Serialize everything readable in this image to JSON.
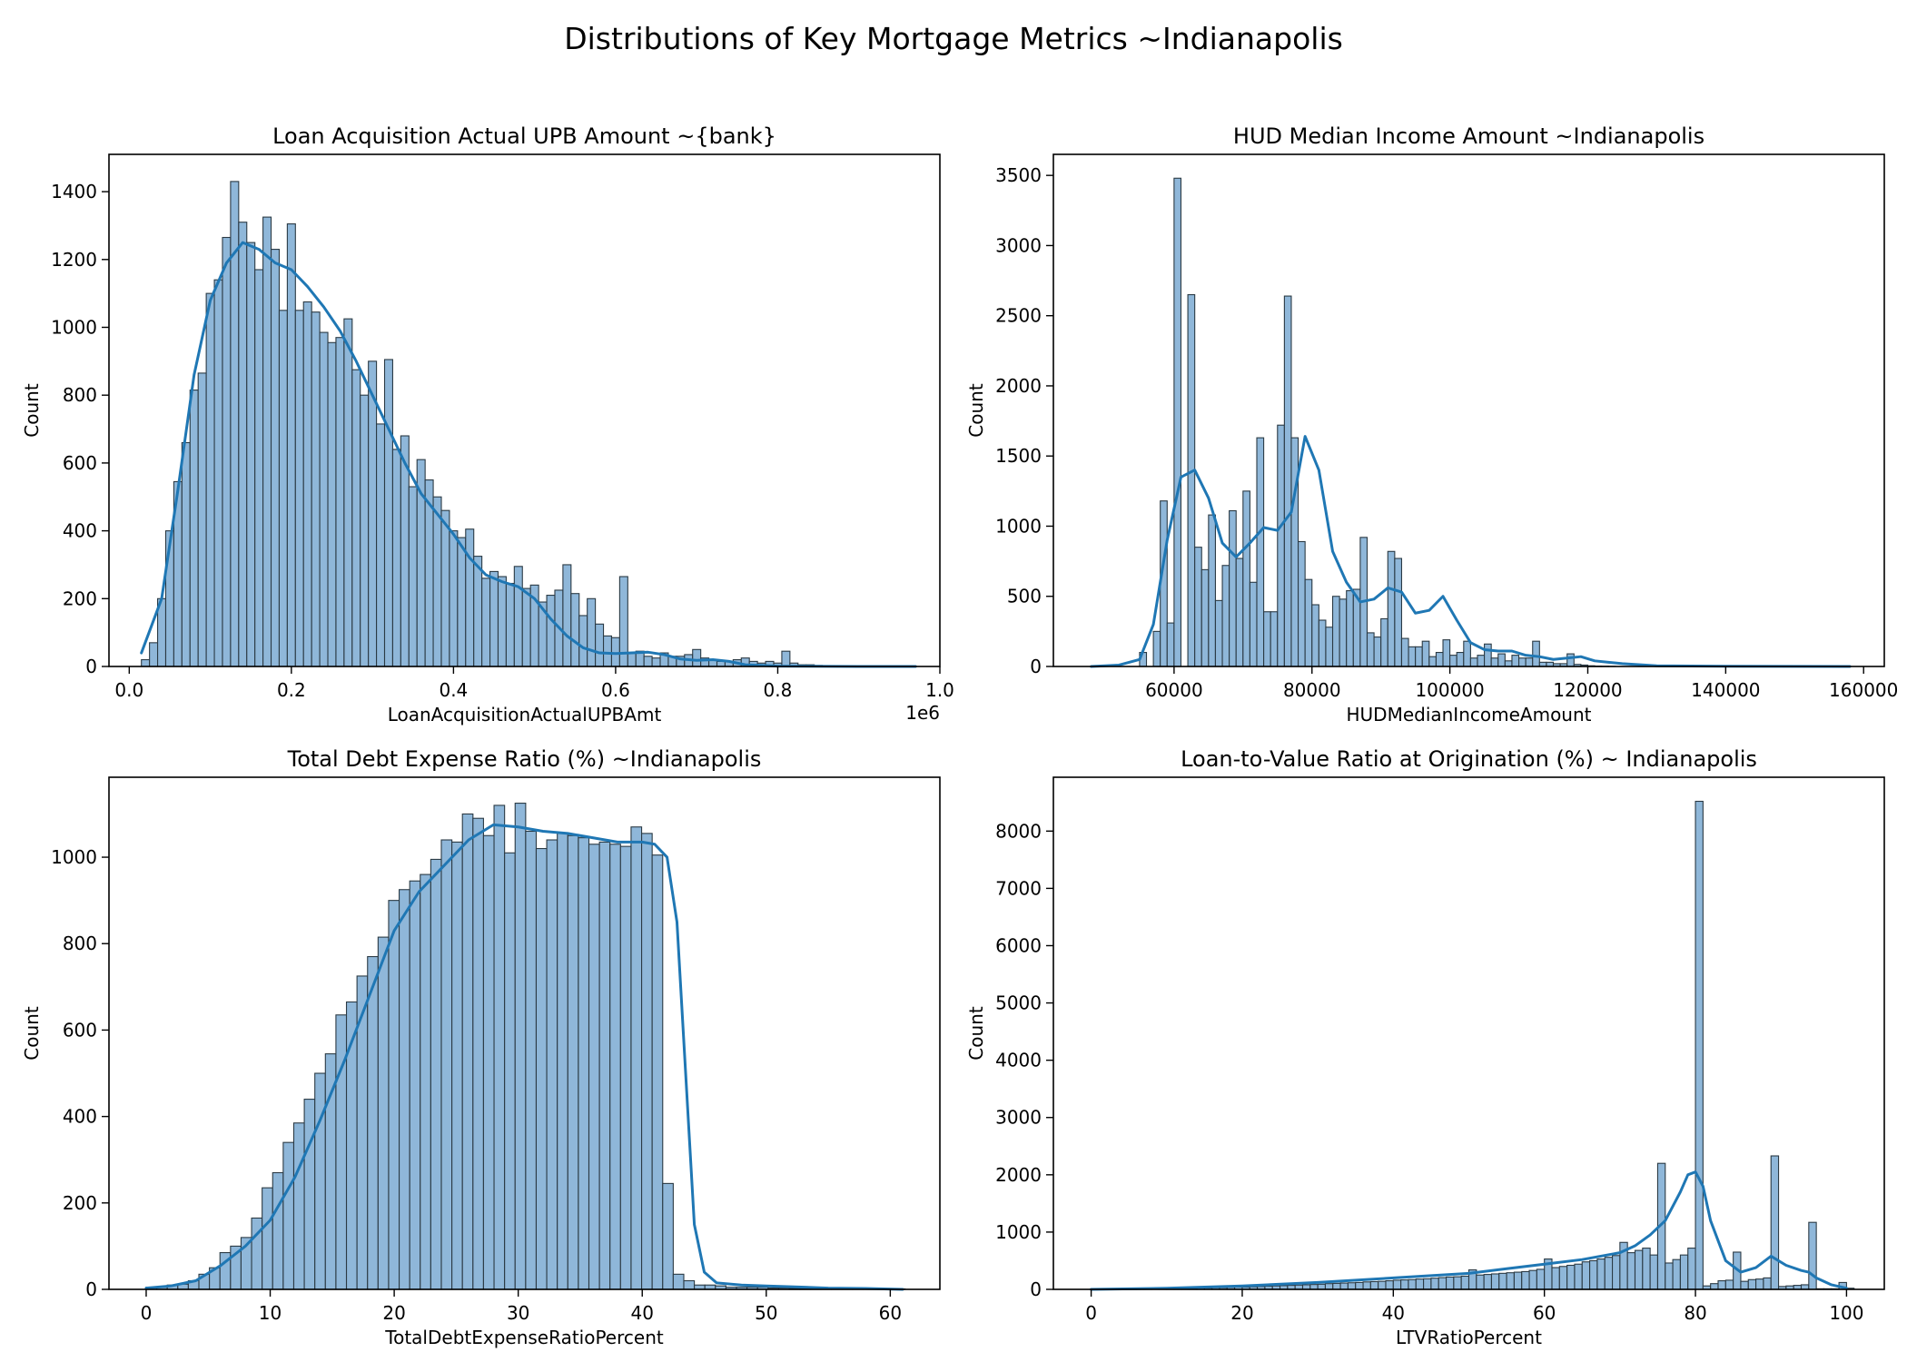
{
  "figure": {
    "title": "Distributions of Key Mortgage Metrics ~Indianapolis"
  },
  "colors": {
    "bar_fill": "#8fb7d9",
    "bar_edge": "#2b3a44",
    "kde_line": "#1f77b4",
    "axes": "#000000"
  },
  "chart_data": [
    {
      "type": "bar",
      "subtype": "histogram_with_kde",
      "title": "Loan Acquisition Actual UPB Amount ~{bank}",
      "xlabel": "LoanAcquisitionActualUPBAmt",
      "ylabel": "Count",
      "x_offset_text": "1e6",
      "xlim": [
        -0.025,
        1.0
      ],
      "ylim": [
        0,
        1510
      ],
      "xticks": [
        0.0,
        0.2,
        0.4,
        0.6,
        0.8,
        1.0
      ],
      "xtick_labels": [
        "0.0",
        "0.2",
        "0.4",
        "0.6",
        "0.8",
        "1.0"
      ],
      "yticks": [
        0,
        200,
        400,
        600,
        800,
        1000,
        1200,
        1400
      ],
      "bin_start": 0.015,
      "bin_width": 0.01,
      "values": [
        20,
        70,
        200,
        400,
        545,
        660,
        815,
        865,
        1100,
        1140,
        1265,
        1430,
        1310,
        1250,
        1170,
        1325,
        1230,
        1050,
        1305,
        1050,
        1075,
        1045,
        985,
        955,
        970,
        1025,
        875,
        800,
        900,
        715,
        905,
        640,
        680,
        530,
        610,
        550,
        500,
        460,
        400,
        380,
        405,
        325,
        260,
        280,
        265,
        245,
        295,
        230,
        240,
        190,
        210,
        225,
        300,
        215,
        150,
        200,
        125,
        90,
        85,
        265,
        40,
        45,
        30,
        25,
        40,
        30,
        30,
        35,
        50,
        25,
        20,
        15,
        15,
        20,
        25,
        15,
        10,
        15,
        10,
        45,
        10,
        5,
        5,
        3,
        2,
        2,
        2,
        1,
        1,
        1,
        1,
        1,
        0,
        0,
        0,
        0,
        0,
        0,
        0,
        0,
        0,
        0,
        0,
        0,
        0,
        0,
        0,
        0,
        0,
        0,
        0,
        0,
        0,
        0,
        0,
        0,
        0,
        0,
        0,
        0
      ],
      "kde": {
        "x": [
          0.015,
          0.04,
          0.06,
          0.08,
          0.1,
          0.12,
          0.14,
          0.16,
          0.18,
          0.2,
          0.22,
          0.24,
          0.26,
          0.28,
          0.3,
          0.32,
          0.34,
          0.36,
          0.38,
          0.4,
          0.42,
          0.44,
          0.46,
          0.48,
          0.5,
          0.52,
          0.54,
          0.56,
          0.58,
          0.6,
          0.62,
          0.64,
          0.66,
          0.68,
          0.7,
          0.72,
          0.74,
          0.76,
          0.8,
          0.9,
          0.97
        ],
        "y": [
          40,
          200,
          520,
          860,
          1080,
          1190,
          1250,
          1230,
          1190,
          1170,
          1120,
          1060,
          990,
          900,
          800,
          700,
          600,
          510,
          450,
          390,
          320,
          270,
          250,
          235,
          200,
          140,
          90,
          55,
          40,
          38,
          40,
          42,
          35,
          22,
          18,
          20,
          15,
          5,
          1,
          0,
          0
        ]
      }
    },
    {
      "type": "bar",
      "subtype": "histogram_with_kde",
      "title": "HUD Median Income Amount ~Indianapolis",
      "xlabel": "HUDMedianIncomeAmount",
      "ylabel": "Count",
      "xlim": [
        42500,
        163000
      ],
      "ylim": [
        0,
        3650
      ],
      "xticks": [
        60000,
        80000,
        100000,
        120000,
        140000,
        160000
      ],
      "xtick_labels": [
        "60000",
        "80000",
        "100000",
        "120000",
        "140000",
        "160000"
      ],
      "yticks": [
        0,
        500,
        1000,
        1500,
        2000,
        2500,
        3000,
        3500
      ],
      "bin_start": 55000,
      "bin_width": 1000,
      "values": [
        100,
        0,
        250,
        1180,
        310,
        3480,
        0,
        2650,
        850,
        690,
        1080,
        470,
        720,
        1110,
        770,
        1250,
        600,
        1630,
        390,
        390,
        1720,
        2640,
        1630,
        890,
        620,
        440,
        330,
        280,
        500,
        480,
        540,
        550,
        920,
        240,
        210,
        340,
        820,
        770,
        200,
        140,
        140,
        180,
        70,
        100,
        190,
        80,
        100,
        180,
        60,
        80,
        160,
        60,
        90,
        40,
        80,
        60,
        60,
        180,
        30,
        30,
        20,
        20,
        90,
        15,
        10,
        5,
        3,
        2,
        1,
        0,
        0,
        0,
        0,
        0,
        0,
        0,
        0,
        0,
        0,
        0,
        0,
        0,
        0,
        0,
        0,
        0,
        0,
        0,
        0,
        0,
        0,
        0,
        0,
        0,
        0,
        0,
        0,
        0,
        0,
        0,
        0,
        0,
        0
      ],
      "kde": {
        "x": [
          48000,
          52000,
          55000,
          57000,
          59000,
          61000,
          63000,
          65000,
          67000,
          69000,
          71000,
          73000,
          75000,
          77000,
          79000,
          81000,
          83000,
          85000,
          87000,
          89000,
          91000,
          93000,
          95000,
          97000,
          99000,
          101000,
          103000,
          105000,
          107000,
          109000,
          111000,
          113000,
          115000,
          117000,
          119000,
          121000,
          123000,
          125000,
          130000,
          140000,
          158000
        ],
        "y": [
          0,
          10,
          50,
          300,
          900,
          1350,
          1400,
          1200,
          880,
          780,
          880,
          990,
          970,
          1100,
          1640,
          1400,
          820,
          600,
          460,
          480,
          560,
          530,
          380,
          400,
          500,
          330,
          170,
          120,
          110,
          110,
          80,
          70,
          50,
          60,
          70,
          40,
          30,
          20,
          5,
          2,
          0
        ]
      }
    },
    {
      "type": "bar",
      "subtype": "histogram_with_kde",
      "title": "Total Debt Expense Ratio (%) ~Indianapolis",
      "xlabel": "TotalDebtExpenseRatioPercent",
      "ylabel": "Count",
      "xlim": [
        -3,
        64
      ],
      "ylim": [
        0,
        1185
      ],
      "xticks": [
        0,
        10,
        20,
        30,
        40,
        50,
        60
      ],
      "xtick_labels": [
        "0",
        "10",
        "20",
        "30",
        "40",
        "50",
        "60"
      ],
      "yticks": [
        0,
        200,
        400,
        600,
        800,
        1000
      ],
      "bin_start": 0,
      "bin_width": 0.85,
      "values": [
        5,
        5,
        10,
        12,
        20,
        35,
        50,
        85,
        100,
        120,
        165,
        235,
        270,
        340,
        385,
        440,
        500,
        545,
        635,
        665,
        725,
        770,
        815,
        900,
        925,
        945,
        960,
        995,
        1040,
        1035,
        1100,
        1090,
        1050,
        1120,
        1010,
        1125,
        1060,
        1020,
        1040,
        1055,
        1050,
        1045,
        1030,
        1035,
        1030,
        1025,
        1070,
        1055,
        1005,
        245,
        35,
        20,
        10,
        10,
        8,
        5,
        5,
        5,
        5,
        3,
        3,
        2,
        2,
        2,
        1,
        1,
        1,
        1,
        1,
        0,
        0,
        1
      ],
      "kde": {
        "x": [
          0,
          2,
          4,
          6,
          8,
          10,
          12,
          14,
          16,
          18,
          20,
          22,
          24,
          26,
          28,
          30,
          32,
          34,
          36,
          38,
          40,
          41,
          42,
          42.8,
          43.5,
          44.2,
          45,
          46,
          48,
          50,
          52,
          55,
          58,
          61
        ],
        "y": [
          3,
          8,
          20,
          55,
          100,
          160,
          260,
          390,
          530,
          680,
          830,
          920,
          980,
          1040,
          1075,
          1070,
          1060,
          1055,
          1045,
          1035,
          1035,
          1030,
          1000,
          850,
          500,
          150,
          40,
          15,
          10,
          8,
          6,
          3,
          2,
          0
        ]
      }
    },
    {
      "type": "bar",
      "subtype": "histogram_with_kde",
      "title": "Loan-to-Value Ratio at Origination (%) ~ Indianapolis",
      "xlabel": "LTVRatioPercent",
      "ylabel": "Count",
      "xlim": [
        -5,
        105
      ],
      "ylim": [
        0,
        8940
      ],
      "xticks": [
        0,
        20,
        40,
        60,
        80,
        100
      ],
      "xtick_labels": [
        "0",
        "20",
        "40",
        "60",
        "80",
        "100"
      ],
      "yticks": [
        0,
        1000,
        2000,
        3000,
        4000,
        5000,
        6000,
        7000,
        8000
      ],
      "bin_start": 1,
      "bin_width": 1,
      "values": [
        5,
        5,
        5,
        5,
        5,
        5,
        10,
        10,
        10,
        15,
        15,
        20,
        20,
        25,
        25,
        30,
        30,
        35,
        40,
        40,
        45,
        50,
        55,
        60,
        65,
        70,
        75,
        80,
        85,
        90,
        100,
        105,
        110,
        115,
        120,
        130,
        135,
        140,
        150,
        160,
        165,
        170,
        180,
        185,
        195,
        205,
        215,
        220,
        230,
        340,
        250,
        260,
        270,
        280,
        290,
        300,
        310,
        330,
        350,
        530,
        380,
        400,
        420,
        440,
        480,
        500,
        530,
        560,
        590,
        820,
        640,
        680,
        720,
        600,
        2200,
        460,
        520,
        600,
        720,
        8520,
        60,
        100,
        150,
        160,
        650,
        140,
        170,
        180,
        200,
        2330,
        50,
        60,
        70,
        80,
        1170,
        10,
        10,
        10,
        120,
        20
      ],
      "kde": {
        "x": [
          0,
          10,
          20,
          30,
          40,
          50,
          55,
          60,
          65,
          70,
          72,
          74,
          76,
          78,
          79,
          80,
          81,
          82,
          84,
          86,
          88,
          90,
          92,
          94,
          95,
          96,
          98,
          100
        ],
        "y": [
          0,
          20,
          60,
          120,
          200,
          280,
          360,
          440,
          520,
          640,
          760,
          950,
          1200,
          1700,
          2000,
          2050,
          1800,
          1200,
          500,
          300,
          380,
          580,
          420,
          330,
          300,
          200,
          80,
          20
        ]
      }
    }
  ]
}
